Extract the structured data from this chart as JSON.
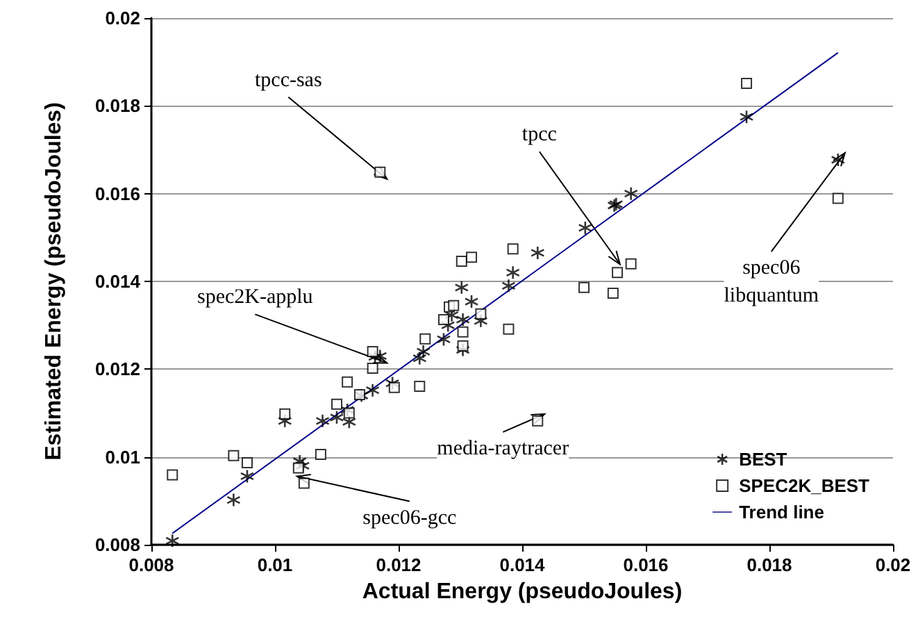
{
  "chart_data": {
    "type": "scatter",
    "xlabel": "Actual Energy (pseudoJoules)",
    "ylabel": "Estimated Energy (pseudoJoules)",
    "xlim": [
      0.008,
      0.02
    ],
    "xticks": [
      0.008,
      0.01,
      0.012,
      0.014,
      0.016,
      0.018,
      0.02
    ],
    "ylim": [
      0.008,
      0.02
    ],
    "yticks": [
      0.008,
      0.01,
      0.012,
      0.014,
      0.016,
      0.018,
      0.02
    ],
    "grid": "y",
    "legend": "bottom right",
    "series": [
      {
        "name": "BEST",
        "marker": "cross",
        "color": "#000000",
        "x": [
          0.00834,
          0.00933,
          0.00955,
          0.01016,
          0.0104,
          0.01045,
          0.01077,
          0.011,
          0.01117,
          0.0112,
          0.0114,
          0.01158,
          0.01162,
          0.0117,
          0.0119,
          0.01234,
          0.0124,
          0.01273,
          0.0128,
          0.01286,
          0.01302,
          0.01304,
          0.01304,
          0.01318,
          0.01333,
          0.01378,
          0.01385,
          0.01425,
          0.01502,
          0.01549,
          0.01552,
          0.01576,
          0.01763,
          0.01911
        ],
        "values": [
          0.00809,
          0.00902,
          0.00956,
          0.01082,
          0.0099,
          0.0098,
          0.01082,
          0.0109,
          0.01107,
          0.0108,
          0.0114,
          0.01152,
          0.01228,
          0.0123,
          0.01168,
          0.01225,
          0.0124,
          0.01268,
          0.013,
          0.01323,
          0.01386,
          0.01313,
          0.01244,
          0.01354,
          0.0131,
          0.0139,
          0.0142,
          0.01465,
          0.01522,
          0.01573,
          0.01576,
          0.016,
          0.01775,
          0.01677
        ]
      },
      {
        "name": "SPEC2K_BEST",
        "marker": "square",
        "color": "#000000",
        "x": [
          0.00834,
          0.00933,
          0.00955,
          0.01016,
          0.01038,
          0.01047,
          0.01074,
          0.011,
          0.01117,
          0.0112,
          0.01137,
          0.01158,
          0.01158,
          0.0117,
          0.01193,
          0.01234,
          0.01243,
          0.01273,
          0.01282,
          0.01289,
          0.01302,
          0.01318,
          0.01304,
          0.01304,
          0.01333,
          0.01378,
          0.01385,
          0.01425,
          0.015,
          0.01547,
          0.01554,
          0.01576,
          0.01763,
          0.01911
        ],
        "values": [
          0.00959,
          0.01003,
          0.00987,
          0.01098,
          0.00975,
          0.0094,
          0.01006,
          0.0112,
          0.01171,
          0.011,
          0.01142,
          0.01202,
          0.0124,
          0.01649,
          0.01158,
          0.01161,
          0.01269,
          0.01313,
          0.01342,
          0.01345,
          0.01446,
          0.01455,
          0.01285,
          0.01253,
          0.01326,
          0.01291,
          0.01474,
          0.01082,
          0.01386,
          0.01373,
          0.0142,
          0.0144,
          0.01851,
          0.01589
        ]
      },
      {
        "name": "Trend line",
        "type": "line",
        "marker": "none",
        "color": "#00008b",
        "x": [
          0.00834,
          0.01911
        ],
        "values": [
          0.00826,
          0.01921
        ]
      }
    ],
    "annotations": [
      {
        "text": "tpcc-sas",
        "x": 0.0117,
        "y": 0.01649
      },
      {
        "text": "spec2K-applu",
        "x": 0.0117,
        "y": 0.0123
      },
      {
        "text": "tpcc",
        "x": 0.01547,
        "y": 0.01455
      },
      {
        "text": "media-raytracer",
        "x": 0.01425,
        "y": 0.01082
      },
      {
        "text": "spec06-gcc",
        "x": 0.01047,
        "y": 0.0094
      },
      {
        "text": "spec06\nlibquantum",
        "x": 0.01911,
        "y": 0.01677
      }
    ]
  }
}
